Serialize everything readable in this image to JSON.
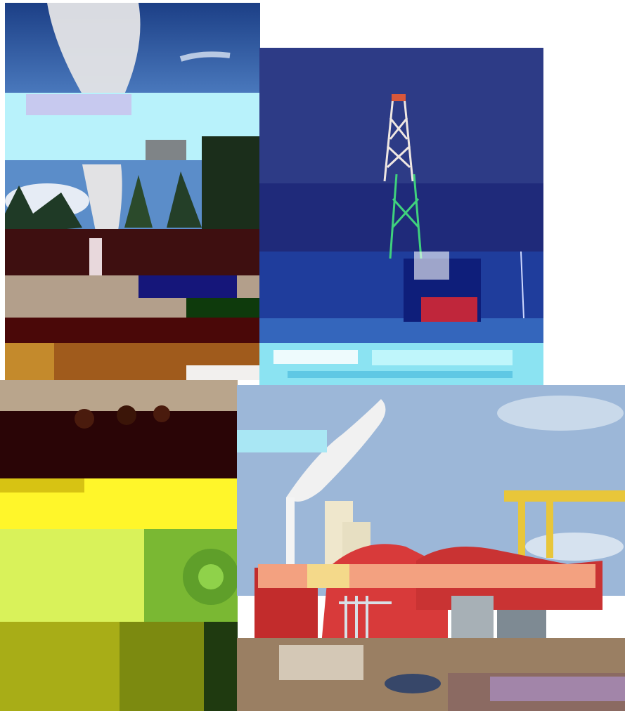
{
  "collage": {
    "panels": [
      {
        "id": "geyser",
        "subject": "geyser-steam-eruption"
      },
      {
        "id": "rig",
        "subject": "drilling-rig"
      },
      {
        "id": "machinery",
        "subject": "industrial-machinery"
      },
      {
        "id": "plant",
        "subject": "geothermal-power-plant"
      }
    ]
  },
  "colors": {
    "sky_dark": "#1c3f86",
    "sky_light": "#9ec1e6",
    "steam": "#e9e9ea",
    "forest": "#1f3a26",
    "earth": "#a05b1c",
    "snow": "#f2f0ee",
    "rig_sky": "#2d3b86",
    "rig_blue": "#1f3d9c",
    "rig_ground": "#8be3f2",
    "lime": "#d9f25a",
    "yellow": "#fff62a",
    "dark_red": "#3b0808",
    "turbine_red": "#d83a3a",
    "crane_yellow": "#e8c63a",
    "plant_sky": "#9cb7d8"
  }
}
